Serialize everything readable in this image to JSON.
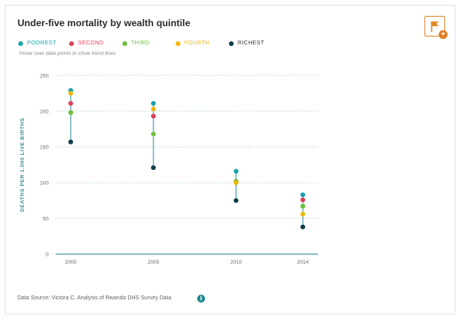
{
  "title": "Under-five mortality by wealth quintile",
  "hint": "Hover over data points to show trend lines",
  "source": "Data Source: Victora C. Analysis of Rwanda DHS Survey Data",
  "icons": {
    "flag": "flag-icon",
    "plus": "plus-icon",
    "info": "info-icon"
  },
  "info_glyph": "i",
  "plus_glyph": "+",
  "colors": {
    "accent": "#e08a2c",
    "range_line": "#2a8f96",
    "grid": "#b7dcd8",
    "axis_label": "#3a8c93"
  },
  "chart_data": {
    "type": "scatter",
    "title": "Under-five mortality by wealth quintile",
    "xlabel": "",
    "ylabel": "DEATHS PER 1,000 LIVE BIRTHS",
    "categories": [
      "2000",
      "2005",
      "2010",
      "2014"
    ],
    "ylim": [
      0,
      250
    ],
    "yticks": [
      0,
      50,
      100,
      150,
      200,
      250
    ],
    "grid": true,
    "legend": "top-left",
    "series": [
      {
        "name": "POOREST",
        "color": "#1aa3ad",
        "values": [
          229,
          211,
          116,
          83
        ]
      },
      {
        "name": "SECOND",
        "color": "#e0405a",
        "values": [
          211,
          193,
          102,
          76
        ]
      },
      {
        "name": "THIRD",
        "color": "#6cbf3a",
        "values": [
          198,
          168,
          102,
          67
        ]
      },
      {
        "name": "FOURTH",
        "color": "#f2b705",
        "values": [
          225,
          203,
          100,
          56
        ]
      },
      {
        "name": "RICHEST",
        "color": "#0f3d4a",
        "values": [
          157,
          121,
          75,
          38
        ]
      }
    ]
  }
}
